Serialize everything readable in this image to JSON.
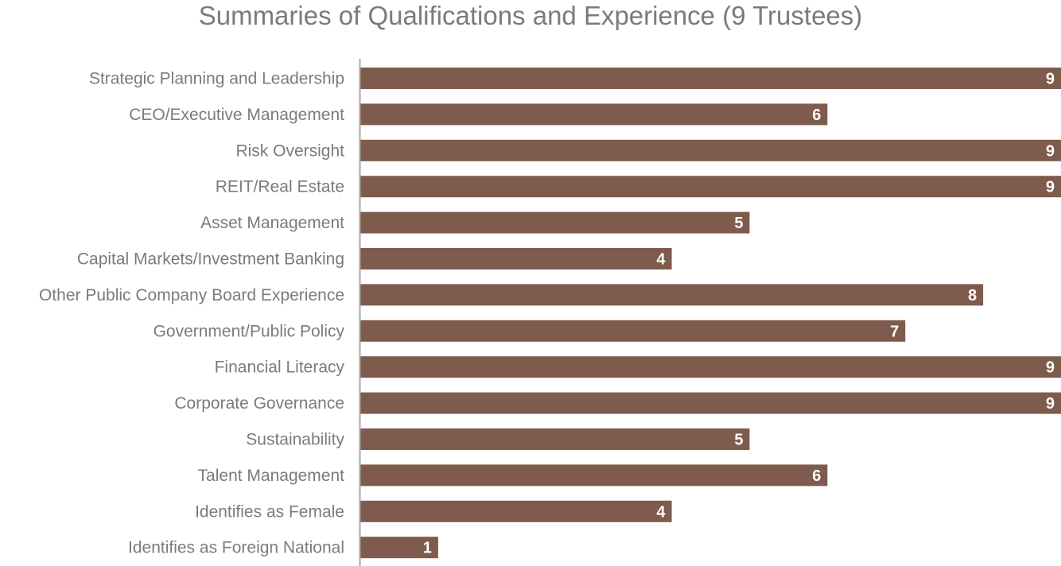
{
  "chart_data": {
    "type": "bar",
    "orientation": "horizontal",
    "title": "Summaries of Qualifications and Experience (9 Trustees)",
    "categories": [
      "Strategic Planning and Leadership",
      "CEO/Executive Management",
      "Risk Oversight",
      "REIT/Real Estate",
      "Asset Management",
      "Capital Markets/Investment Banking",
      "Other Public Company Board Experience",
      "Government/Public Policy",
      "Financial Literacy",
      "Corporate Governance",
      "Sustainability",
      "Talent Management",
      "Identifies as Female",
      "Identifies as Foreign National"
    ],
    "values": [
      9,
      6,
      9,
      9,
      5,
      4,
      8,
      7,
      9,
      9,
      5,
      6,
      4,
      1
    ],
    "xlim": [
      0,
      9
    ],
    "grid": false,
    "data_labels": true,
    "bar_color": "#7f5b4d",
    "label_color": "#ffffff",
    "text_color": "#7b7b7b",
    "axis_color": "#a6a6a6"
  }
}
